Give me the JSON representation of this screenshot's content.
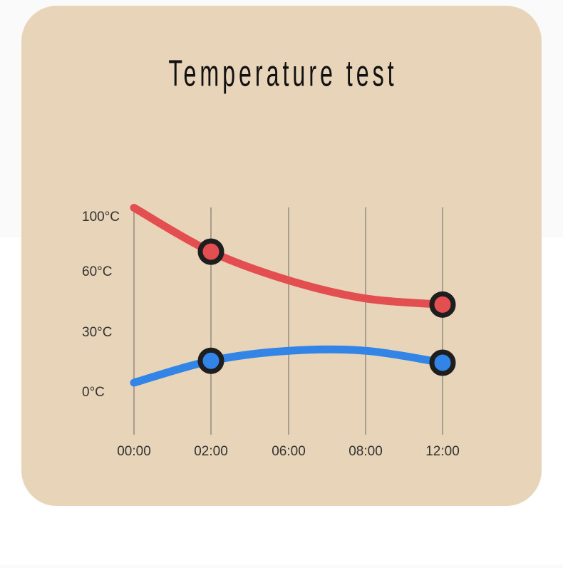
{
  "chart_data": {
    "type": "line",
    "title": "Temperature test",
    "categories": [
      "00:00",
      "02:00",
      "06:00",
      "08:00",
      "12:00"
    ],
    "series": [
      {
        "color": "#e34e50",
        "values": [
          107,
          75,
          56,
          47,
          44
        ]
      },
      {
        "color": "#3285e6",
        "values": [
          5,
          16,
          21,
          21,
          15
        ]
      }
    ],
    "marker_indices": [
      1,
      4
    ],
    "ylim": [
      -25,
      110
    ],
    "yticks": [
      {
        "value": 100,
        "label": "100°C"
      },
      {
        "value": 60,
        "label": "60°C"
      },
      {
        "value": 30,
        "label": "30°C"
      },
      {
        "value": 0,
        "label": "0°C"
      }
    ],
    "grid": true
  }
}
